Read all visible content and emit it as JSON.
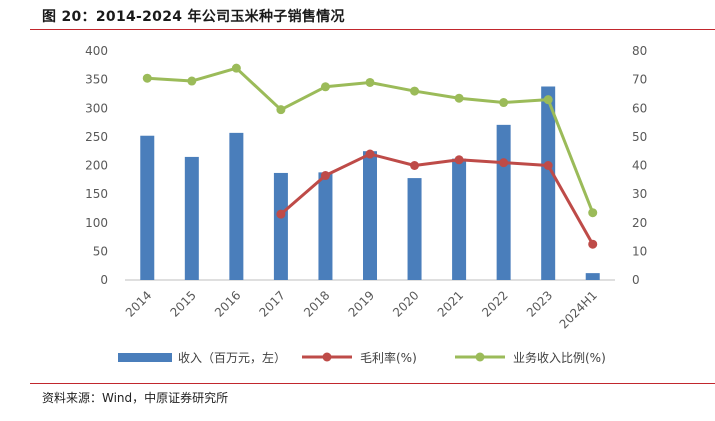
{
  "figure": {
    "title": "图 20：2014-2024 年公司玉米种子销售情况",
    "source": "资料来源：Wind，中原证券研究所"
  },
  "colors": {
    "bar": "#4a7ebb",
    "margin": "#be4b48",
    "share": "#9bbb59",
    "axis_text": "#595959",
    "rule": "#c1272d"
  },
  "chart_data": {
    "type": "bar",
    "categories": [
      "2014",
      "2015",
      "2016",
      "2017",
      "2018",
      "2019",
      "2020",
      "2021",
      "2022",
      "2023",
      "2024H1"
    ],
    "series": [
      {
        "name": "收入（百万元，左）",
        "type": "bar",
        "axis": "left",
        "values": [
          252,
          215,
          257,
          187,
          188,
          225,
          178,
          212,
          271,
          338,
          12
        ]
      },
      {
        "name": "毛利率(%)",
        "type": "line",
        "axis": "right",
        "values": [
          null,
          null,
          null,
          23,
          36.5,
          44,
          40,
          42,
          41,
          40,
          12.5
        ]
      },
      {
        "name": "业务收入比例(%)",
        "type": "line",
        "axis": "right",
        "values": [
          70.5,
          69.5,
          74,
          59.5,
          67.5,
          69,
          66,
          63.5,
          62,
          63,
          23.5
        ]
      }
    ],
    "y_left": {
      "min": 0,
      "max": 400,
      "ticks": [
        0,
        50,
        100,
        150,
        200,
        250,
        300,
        350,
        400
      ]
    },
    "y_right": {
      "min": 0,
      "max": 80,
      "ticks": [
        0,
        10,
        20,
        30,
        40,
        50,
        60,
        70,
        80
      ]
    },
    "grid": false,
    "legend_position": "bottom"
  }
}
